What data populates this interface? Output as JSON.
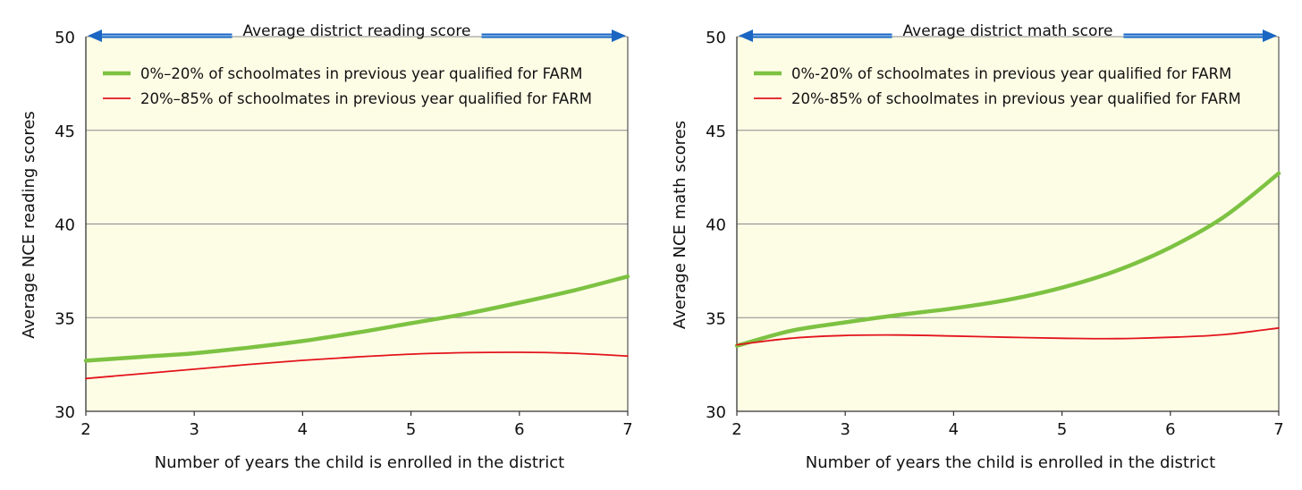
{
  "chart_data": [
    {
      "type": "line",
      "title": "Average district reading score",
      "xlabel": "Number of years the child is enrolled in the district",
      "ylabel": "Average NCE reading scores",
      "xlim": [
        2,
        7
      ],
      "ylim": [
        30,
        50
      ],
      "x_ticks": [
        "2",
        "3",
        "4",
        "5",
        "6",
        "7"
      ],
      "y_ticks": [
        "30",
        "35",
        "40",
        "45",
        "50"
      ],
      "grid": true,
      "legend_position": "top-left",
      "background": "#fdfde6",
      "x": [
        2,
        2.5,
        3,
        3.5,
        4,
        4.5,
        5,
        5.5,
        6,
        6.5,
        7
      ],
      "series": [
        {
          "name": "0%–20% of schoolmates in previous year qualified for FARM",
          "color": "#7dc242",
          "width": "thick",
          "values": [
            32.7,
            32.9,
            33.1,
            33.4,
            33.75,
            34.2,
            34.7,
            35.2,
            35.8,
            36.45,
            37.2
          ]
        },
        {
          "name": "20%–85% of schoolmates in previous year qualified for FARM",
          "color": "#e3141b",
          "width": "thin",
          "values": [
            31.75,
            32.0,
            32.25,
            32.5,
            32.72,
            32.9,
            33.05,
            33.13,
            33.15,
            33.1,
            32.95
          ]
        }
      ]
    },
    {
      "type": "line",
      "title": "Average district math score",
      "xlabel": "Number of years the child is enrolled in the district",
      "ylabel": "Average NCE math scores",
      "xlim": [
        2,
        7
      ],
      "ylim": [
        30,
        50
      ],
      "x_ticks": [
        "2",
        "3",
        "4",
        "5",
        "6",
        "7"
      ],
      "y_ticks": [
        "30",
        "35",
        "40",
        "45",
        "50"
      ],
      "grid": true,
      "legend_position": "top-left",
      "background": "#fdfde6",
      "x": [
        2,
        2.5,
        3,
        3.5,
        4,
        4.5,
        5,
        5.5,
        6,
        6.5,
        7
      ],
      "series": [
        {
          "name": "0%-20% of schoolmates in previous year qualified for FARM",
          "color": "#7dc242",
          "width": "thick",
          "values": [
            33.5,
            34.3,
            34.75,
            35.15,
            35.5,
            35.95,
            36.6,
            37.5,
            38.75,
            40.4,
            42.7
          ]
        },
        {
          "name": "20%-85% of schoolmates in previous year qualified for FARM",
          "color": "#e3141b",
          "width": "thin",
          "values": [
            33.55,
            33.9,
            34.05,
            34.07,
            34.02,
            33.95,
            33.9,
            33.88,
            33.95,
            34.1,
            34.45
          ]
        }
      ]
    }
  ]
}
